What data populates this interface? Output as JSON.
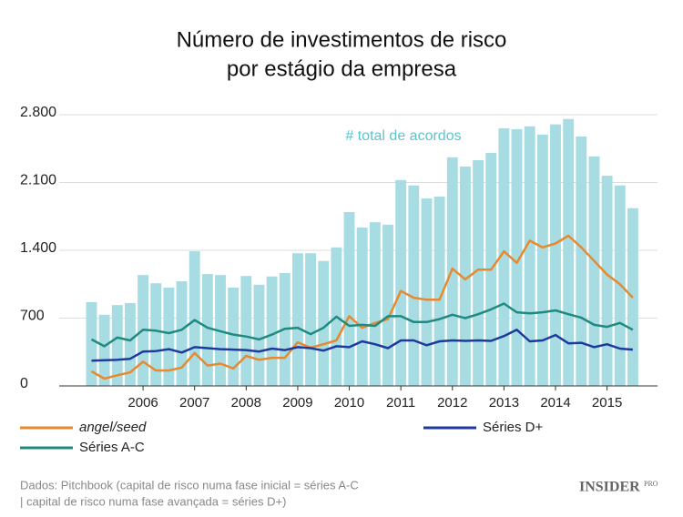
{
  "chart_data": {
    "type": "bar",
    "title": [
      "Número de investimentos de risco",
      "por estágio da empresa"
    ],
    "categories": [
      null,
      null,
      null,
      null,
      "2006",
      null,
      null,
      null,
      "2007",
      null,
      null,
      null,
      "2008",
      null,
      null,
      null,
      "2009",
      null,
      null,
      null,
      "2010",
      null,
      null,
      null,
      "2011",
      null,
      null,
      null,
      "2012",
      null,
      null,
      null,
      "2013",
      null,
      null,
      null,
      "2014",
      null,
      null,
      null,
      "2015",
      null,
      null
    ],
    "series": [
      {
        "name": "# total de acordos",
        "type": "bar",
        "color": "#a8dce3",
        "values": [
          865,
          735,
          835,
          855,
          1145,
          1060,
          1015,
          1080,
          1390,
          1155,
          1145,
          1015,
          1135,
          1045,
          1130,
          1165,
          1370,
          1370,
          1290,
          1430,
          1795,
          1635,
          1690,
          1665,
          2125,
          2070,
          1935,
          1955,
          2360,
          2265,
          2330,
          2405,
          2660,
          2650,
          2680,
          2595,
          2700,
          2755,
          2575,
          2370,
          2170,
          2070,
          1835
        ]
      },
      {
        "name": "angel/seed",
        "type": "line",
        "color": "#e8892e",
        "values": [
          150,
          75,
          110,
          140,
          250,
          160,
          160,
          190,
          340,
          210,
          230,
          180,
          310,
          270,
          290,
          290,
          450,
          395,
          430,
          470,
          720,
          600,
          650,
          690,
          980,
          910,
          890,
          890,
          1210,
          1100,
          1200,
          1200,
          1390,
          1270,
          1500,
          1430,
          1470,
          1550,
          1430,
          1290,
          1150,
          1050,
          910
        ]
      },
      {
        "name": "Séries A-C",
        "type": "line",
        "color": "#1f8a80",
        "values": [
          480,
          410,
          500,
          470,
          580,
          570,
          545,
          580,
          680,
          600,
          565,
          530,
          510,
          480,
          530,
          590,
          600,
          535,
          600,
          715,
          620,
          630,
          620,
          720,
          720,
          660,
          660,
          690,
          735,
          700,
          740,
          790,
          850,
          760,
          750,
          760,
          780,
          740,
          705,
          630,
          610,
          650,
          580
        ]
      },
      {
        "name": "Séries D+",
        "type": "line",
        "color": "#1f3a9e",
        "values": [
          260,
          265,
          270,
          280,
          355,
          360,
          380,
          345,
          400,
          390,
          380,
          375,
          370,
          355,
          385,
          370,
          400,
          390,
          365,
          410,
          400,
          460,
          430,
          390,
          470,
          470,
          420,
          460,
          470,
          465,
          470,
          465,
          515,
          580,
          460,
          470,
          525,
          440,
          445,
          400,
          430,
          385,
          375
        ]
      }
    ],
    "ylim": [
      0,
      2800
    ],
    "yticks": [
      0,
      700,
      {
        "value": 1400,
        "label": "1.400"
      },
      {
        "value": 2100,
        "label": "2.100"
      },
      {
        "value": 2800,
        "label": "2.800"
      }
    ],
    "grid": true,
    "source": [
      "Dados: Pitchbook (capital de risco numa fase inicial = séries A-C",
      "| capital de risco numa fase avançada = séries D+)"
    ],
    "logo": [
      "INSIDER",
      "PRO"
    ]
  }
}
